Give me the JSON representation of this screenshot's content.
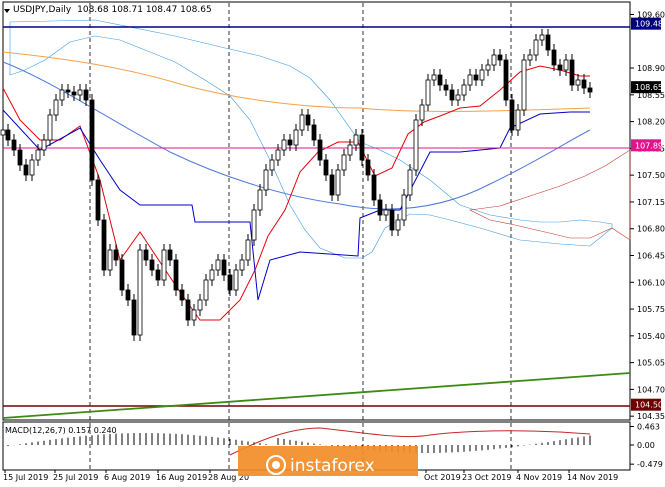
{
  "header": {
    "symbol_label": "USDJPY,Daily",
    "ohlc": "108.68 108.71 108.47 108.65"
  },
  "watermark": "instaforex",
  "colors": {
    "background": "#ffffff",
    "bull_candle": "#000000",
    "bear_candle": "#000000",
    "tenkan": "#e8000b",
    "kijun": "#0000c8",
    "chikou": "#b6e3f5",
    "ma_orange": "#f2a14a",
    "ma_blue": "#4f7bd9",
    "magenta_level": "#e0138c",
    "navy_level": "#000080",
    "maroon_level": "#6e0000",
    "trendline": "#3c8a14",
    "cloud_bull": "#3d9ae0",
    "cloud_bear": "#c0392b",
    "macd_signal": "#c62828",
    "macd_hist": "#000000",
    "price_axis_bg": "#000000",
    "watermark_orange": "#f28c28"
  },
  "chart_data": [
    {
      "type": "candlestick",
      "title": "USDJPY,Daily",
      "price_axis": {
        "ticks": [
          109.6,
          108.9,
          108.55,
          108.2,
          107.85,
          107.5,
          107.15,
          106.8,
          106.45,
          106.1,
          105.75,
          105.4,
          105.05,
          104.7,
          104.35
        ],
        "labels": [
          "109.60",
          "108.90",
          "108.55",
          "108.20",
          "107.85",
          "107.50",
          "107.15",
          "106.80",
          "106.45",
          "106.10",
          "105.75",
          "105.40",
          "105.05",
          "104.70",
          "104.35"
        ],
        "range": [
          104.3,
          109.75
        ]
      },
      "x_labels": [
        "15 Jul 2019",
        "25 Jul 2019",
        "6 Aug 2019",
        "16 Aug 2019",
        "28 Aug 20",
        "Oct 2019",
        "23 Oct 2019",
        "4 Nov 2019",
        "14 Nov 2019"
      ],
      "levels": [
        {
          "name": "109.48",
          "value": 109.48,
          "color": "#000080"
        },
        {
          "name": "108.65",
          "value": 108.65,
          "color": "#000000"
        },
        {
          "name": "107.89",
          "value": 107.89,
          "color": "#e0138c"
        },
        {
          "name": "104.50",
          "value": 104.5,
          "color": "#6e0000"
        }
      ],
      "trendline": {
        "from_date": "15 Jul 2019",
        "from_value": 104.33,
        "to_date": "late Nov 2019",
        "to_value": 104.9
      },
      "grid": true
    },
    {
      "type": "bar",
      "title": "MACD(12,26,7) 0.157 0.240",
      "ticks": [
        0.463,
        0.0,
        -0.479
      ],
      "labels": [
        "0.463",
        "0.00",
        "-0.479"
      ],
      "range": [
        -0.6,
        0.55
      ],
      "grid": true
    }
  ]
}
